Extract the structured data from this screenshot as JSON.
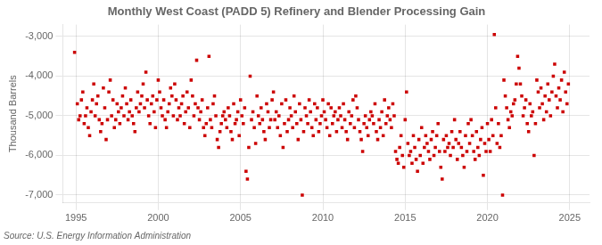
{
  "chart_data": {
    "type": "scatter",
    "title": "Monthly West Coast (PADD 5) Refinery and Blender Processing Gain",
    "ylabel": "Thousand Barrels",
    "annotations": [
      "Source: U.S. Energy Information Administration"
    ],
    "color": "#CC0000",
    "marker": "square",
    "grid": true,
    "xlim": [
      1994.2,
      2026.2
    ],
    "xticks": [
      1995,
      2000,
      2005,
      2010,
      2015,
      2020,
      2025
    ],
    "ylim": [
      -7200,
      -2700
    ],
    "yticks": [
      {
        "value": -7000,
        "label": "-7,000"
      },
      {
        "value": -6000,
        "label": "-6,000"
      },
      {
        "value": -5000,
        "label": "-5,000"
      },
      {
        "value": -4000,
        "label": "-4,000"
      },
      {
        "value": -3000,
        "label": "-3,000"
      }
    ],
    "x": [
      1994.917,
      1995.083,
      1995.167,
      1995.25,
      1995.333,
      1995.417,
      1995.5,
      1995.583,
      1995.667,
      1995.75,
      1995.833,
      1995.917,
      1996.0,
      1996.083,
      1996.167,
      1996.25,
      1996.333,
      1996.417,
      1996.5,
      1996.583,
      1996.667,
      1996.75,
      1996.833,
      1996.917,
      1997.0,
      1997.083,
      1997.167,
      1997.25,
      1997.333,
      1997.417,
      1997.5,
      1997.583,
      1997.667,
      1997.75,
      1997.833,
      1997.917,
      1998.0,
      1998.083,
      1998.167,
      1998.25,
      1998.333,
      1998.417,
      1998.5,
      1998.583,
      1998.667,
      1998.75,
      1998.833,
      1998.917,
      1999.0,
      1999.083,
      1999.167,
      1999.25,
      1999.333,
      1999.417,
      1999.5,
      1999.583,
      1999.667,
      1999.75,
      1999.833,
      1999.917,
      2000.0,
      2000.083,
      2000.167,
      2000.25,
      2000.333,
      2000.417,
      2000.5,
      2000.583,
      2000.667,
      2000.75,
      2000.833,
      2000.917,
      2001.0,
      2001.083,
      2001.167,
      2001.25,
      2001.333,
      2001.417,
      2001.5,
      2001.583,
      2001.667,
      2001.75,
      2001.833,
      2001.917,
      2002.0,
      2002.083,
      2002.167,
      2002.25,
      2002.333,
      2002.417,
      2002.5,
      2002.583,
      2002.667,
      2002.75,
      2002.833,
      2002.917,
      2003.0,
      2003.083,
      2003.167,
      2003.25,
      2003.333,
      2003.417,
      2003.5,
      2003.583,
      2003.667,
      2003.75,
      2003.833,
      2003.917,
      2004.0,
      2004.083,
      2004.167,
      2004.25,
      2004.333,
      2004.417,
      2004.5,
      2004.583,
      2004.667,
      2004.75,
      2004.833,
      2004.917,
      2005.0,
      2005.083,
      2005.167,
      2005.25,
      2005.333,
      2005.417,
      2005.5,
      2005.583,
      2005.667,
      2005.75,
      2005.833,
      2005.917,
      2006.0,
      2006.083,
      2006.167,
      2006.25,
      2006.333,
      2006.417,
      2006.5,
      2006.583,
      2006.667,
      2006.75,
      2006.833,
      2006.917,
      2007.0,
      2007.083,
      2007.167,
      2007.25,
      2007.333,
      2007.417,
      2007.5,
      2007.583,
      2007.667,
      2007.75,
      2007.833,
      2007.917,
      2008.0,
      2008.083,
      2008.167,
      2008.25,
      2008.333,
      2008.417,
      2008.5,
      2008.583,
      2008.667,
      2008.75,
      2008.833,
      2008.917,
      2009.0,
      2009.083,
      2009.167,
      2009.25,
      2009.333,
      2009.417,
      2009.5,
      2009.583,
      2009.667,
      2009.75,
      2009.833,
      2009.917,
      2010.0,
      2010.083,
      2010.167,
      2010.25,
      2010.333,
      2010.417,
      2010.5,
      2010.583,
      2010.667,
      2010.75,
      2010.833,
      2010.917,
      2011.0,
      2011.083,
      2011.167,
      2011.25,
      2011.333,
      2011.417,
      2011.5,
      2011.583,
      2011.667,
      2011.75,
      2011.833,
      2011.917,
      2012.0,
      2012.083,
      2012.167,
      2012.25,
      2012.333,
      2012.417,
      2012.5,
      2012.583,
      2012.667,
      2012.75,
      2012.833,
      2012.917,
      2013.0,
      2013.083,
      2013.167,
      2013.25,
      2013.333,
      2013.417,
      2013.5,
      2013.583,
      2013.667,
      2013.75,
      2013.833,
      2013.917,
      2014.0,
      2014.083,
      2014.167,
      2014.25,
      2014.333,
      2014.417,
      2014.5,
      2014.583,
      2014.667,
      2014.75,
      2014.833,
      2014.917,
      2015.0,
      2015.083,
      2015.167,
      2015.25,
      2015.333,
      2015.417,
      2015.5,
      2015.583,
      2015.667,
      2015.75,
      2015.833,
      2015.917,
      2016.0,
      2016.083,
      2016.167,
      2016.25,
      2016.333,
      2016.417,
      2016.5,
      2016.583,
      2016.667,
      2016.75,
      2016.833,
      2016.917,
      2017.0,
      2017.083,
      2017.167,
      2017.25,
      2017.333,
      2017.417,
      2017.5,
      2017.583,
      2017.667,
      2017.75,
      2017.833,
      2017.917,
      2018.0,
      2018.083,
      2018.167,
      2018.25,
      2018.333,
      2018.417,
      2018.5,
      2018.583,
      2018.667,
      2018.75,
      2018.833,
      2018.917,
      2019.0,
      2019.083,
      2019.167,
      2019.25,
      2019.333,
      2019.417,
      2019.5,
      2019.583,
      2019.667,
      2019.75,
      2019.833,
      2019.917,
      2020.0,
      2020.083,
      2020.167,
      2020.25,
      2020.333,
      2020.417,
      2020.5,
      2020.583,
      2020.667,
      2020.75,
      2020.833,
      2020.917,
      2021.0,
      2021.083,
      2021.167,
      2021.25,
      2021.333,
      2021.417,
      2021.5,
      2021.583,
      2021.667,
      2021.75,
      2021.833,
      2021.917,
      2022.0,
      2022.083,
      2022.167,
      2022.25,
      2022.333,
      2022.417,
      2022.5,
      2022.583,
      2022.667,
      2022.75,
      2022.833,
      2022.917,
      2023.0,
      2023.083,
      2023.167,
      2023.25,
      2023.333,
      2023.417,
      2023.5,
      2023.583,
      2023.667,
      2023.75,
      2023.833,
      2023.917,
      2024.0,
      2024.083,
      2024.167,
      2024.25,
      2024.333,
      2024.417,
      2024.5,
      2024.583,
      2024.667,
      2024.75,
      2024.833,
      2024.917
    ],
    "values": [
      -3400,
      -4700,
      -5100,
      -5000,
      -4600,
      -4400,
      -5200,
      -5000,
      -4800,
      -5300,
      -5500,
      -4900,
      -4600,
      -4200,
      -5000,
      -4700,
      -4500,
      -5100,
      -5400,
      -5200,
      -4300,
      -4800,
      -5600,
      -5100,
      -4400,
      -4100,
      -5000,
      -4600,
      -5300,
      -5100,
      -4700,
      -4900,
      -5200,
      -4800,
      -4500,
      -5000,
      -4300,
      -4700,
      -5100,
      -4900,
      -4600,
      -5000,
      -5200,
      -5400,
      -4800,
      -4400,
      -4900,
      -4700,
      -4500,
      -4200,
      -4800,
      -3900,
      -4600,
      -5000,
      -5200,
      -4700,
      -4500,
      -4900,
      -5300,
      -4600,
      -4100,
      -4400,
      -4800,
      -5000,
      -4600,
      -5100,
      -5300,
      -4900,
      -4700,
      -4300,
      -4500,
      -5000,
      -4200,
      -4600,
      -5100,
      -4800,
      -5000,
      -4700,
      -4500,
      -5200,
      -4900,
      -4400,
      -4800,
      -5300,
      -4100,
      -4500,
      -5000,
      -4700,
      -3600,
      -4800,
      -5100,
      -4900,
      -4600,
      -5300,
      -5500,
      -5200,
      -4800,
      -3500,
      -5100,
      -5300,
      -4700,
      -4500,
      -5000,
      -5600,
      -5800,
      -5400,
      -5200,
      -5000,
      -4900,
      -5100,
      -5300,
      -4800,
      -5000,
      -5400,
      -5600,
      -4700,
      -5200,
      -5100,
      -4900,
      -5500,
      -4600,
      -5000,
      -5200,
      -4800,
      -6400,
      -6600,
      -5800,
      -4000,
      -5100,
      -4900,
      -5300,
      -5700,
      -4500,
      -5000,
      -5200,
      -4800,
      -5100,
      -5400,
      -5600,
      -4700,
      -4900,
      -5300,
      -5100,
      -4600,
      -4400,
      -5100,
      -4900,
      -5300,
      -5000,
      -5500,
      -4700,
      -5800,
      -5200,
      -4600,
      -5400,
      -5100,
      -4800,
      -5000,
      -5300,
      -4500,
      -4900,
      -5200,
      -5600,
      -4700,
      -5100,
      -7000,
      -5400,
      -4800,
      -5000,
      -5200,
      -4600,
      -4900,
      -5300,
      -5500,
      -4700,
      -5100,
      -4800,
      -5400,
      -5200,
      -5000,
      -4600,
      -4900,
      -5100,
      -5300,
      -4700,
      -5500,
      -4800,
      -5200,
      -5000,
      -4900,
      -5400,
      -5100,
      -4800,
      -5000,
      -5300,
      -4700,
      -5100,
      -5400,
      -5600,
      -4900,
      -5200,
      -5000,
      -4600,
      -5300,
      -4500,
      -4800,
      -5100,
      -5400,
      -5600,
      -5900,
      -5200,
      -5000,
      -5300,
      -5500,
      -5100,
      -4900,
      -5000,
      -5200,
      -4700,
      -5400,
      -5600,
      -5100,
      -5300,
      -4900,
      -5500,
      -4600,
      -5200,
      -5000,
      -4800,
      -5100,
      -5300,
      -4700,
      -5000,
      -5900,
      -6100,
      -6200,
      -5800,
      -5500,
      -6000,
      -6300,
      -5100,
      -4400,
      -5700,
      -6000,
      -5900,
      -6200,
      -5500,
      -5800,
      -6100,
      -6400,
      -5600,
      -6000,
      -5300,
      -6200,
      -5800,
      -5500,
      -5700,
      -5900,
      -6100,
      -5600,
      -5400,
      -6000,
      -5800,
      -5500,
      -5200,
      -5900,
      -6300,
      -6600,
      -5600,
      -5900,
      -5500,
      -5800,
      -5700,
      -6000,
      -5400,
      -5800,
      -5100,
      -5600,
      -6100,
      -5700,
      -5400,
      -5800,
      -6000,
      -6300,
      -5500,
      -5900,
      -5200,
      -5700,
      -5100,
      -5500,
      -5900,
      -6100,
      -5400,
      -5800,
      -6000,
      -5600,
      -5300,
      -6500,
      -5700,
      -5900,
      -5200,
      -5600,
      -5900,
      -5100,
      -5500,
      -2950,
      -4800,
      -5700,
      -5200,
      -5800,
      -5500,
      -7000,
      -4100,
      -4500,
      -4800,
      -5100,
      -5300,
      -4900,
      -5000,
      -4700,
      -4600,
      -4200,
      -3500,
      -3800,
      -4200,
      -4500,
      -5000,
      -4800,
      -4600,
      -5200,
      -5400,
      -4700,
      -5000,
      -4900,
      -6000,
      -5200,
      -4100,
      -4400,
      -4800,
      -4300,
      -4700,
      -5100,
      -4500,
      -4900,
      -4200,
      -4600,
      -5000,
      -4400,
      -4000,
      -3700,
      -4500,
      -4800,
      -4300,
      -4600,
      -4100,
      -4900,
      -3900,
      -4400,
      -4700,
      -4200
    ]
  }
}
